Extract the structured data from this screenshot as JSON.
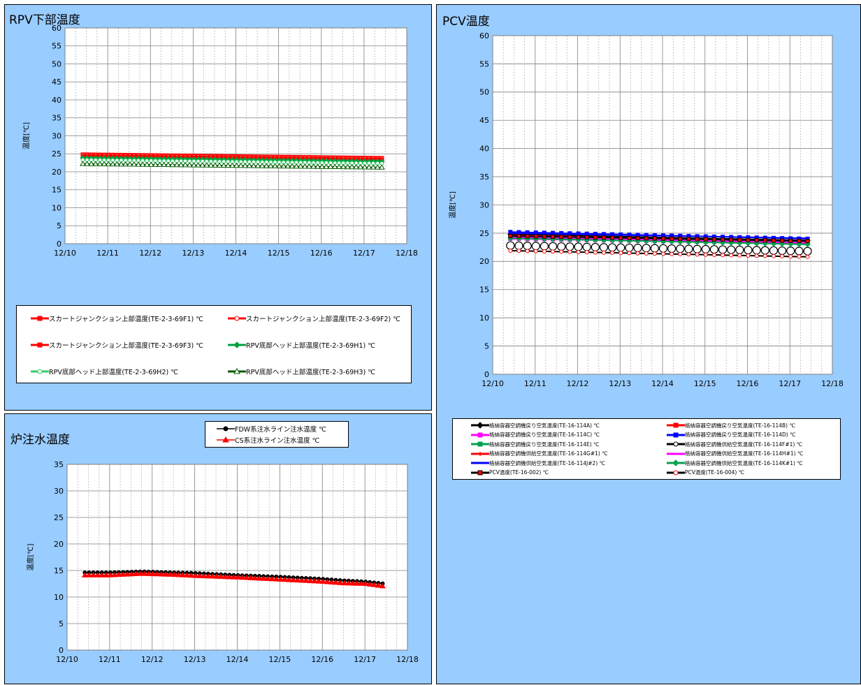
{
  "charts": {
    "rpv": {
      "title": "RPV下部温度",
      "chart_data": {
        "type": "line",
        "title": "RPV下部温度",
        "xlabel": "",
        "ylabel": "温度[℃]",
        "ylim": [
          0,
          60
        ],
        "yticks": [
          0,
          5,
          10,
          15,
          20,
          25,
          30,
          35,
          40,
          45,
          50,
          55,
          60
        ],
        "x_range": [
          "12/10",
          "12/18"
        ],
        "xtick_labels": [
          "12/10",
          "12/11",
          "12/12",
          "12/13",
          "12/14",
          "12/15",
          "12/16",
          "12/17",
          "12/18"
        ],
        "grid": true,
        "x": [
          "12/10 10:00",
          "12/17 11:00"
        ],
        "series": [
          {
            "name": "スカートジャンクション上部温度(TE-2-3-69F1) ℃",
            "values": [
              24.8,
              23.8
            ],
            "color": "#ff0000",
            "marker": "square"
          },
          {
            "name": "スカートジャンクション上部温度(TE-2-3-69F2) ℃",
            "values": [
              24.6,
              23.6
            ],
            "color": "#ff0000",
            "marker": "circle-open"
          },
          {
            "name": "スカートジャンクション上部温度(TE-2-3-69F3) ℃",
            "values": [
              24.3,
              23.3
            ],
            "color": "#ff0000",
            "marker": "square"
          },
          {
            "name": "RPV底部ヘッド上部温度(TE-2-3-69H1) ℃",
            "values": [
              23.8,
              22.8
            ],
            "color": "#00a040",
            "marker": "diamond"
          },
          {
            "name": "RPV底部ヘッド上部温度(TE-2-3-69H2) ℃",
            "values": [
              23.3,
              22.3
            ],
            "color": "#33cc66",
            "marker": "circle-open"
          },
          {
            "name": "RPV底部ヘッド上部温度(TE-2-3-69H3) ℃",
            "values": [
              22.2,
              21.2
            ],
            "color": "#005a00",
            "marker": "triangle-open"
          }
        ]
      }
    },
    "pcv": {
      "title": "PCV温度",
      "chart_data": {
        "type": "line",
        "title": "PCV温度",
        "xlabel": "",
        "ylabel": "温度[℃]",
        "ylim": [
          0,
          60
        ],
        "yticks": [
          0,
          5,
          10,
          15,
          20,
          25,
          30,
          35,
          40,
          45,
          50,
          55,
          60
        ],
        "x_range": [
          "12/10",
          "12/18"
        ],
        "xtick_labels": [
          "12/10",
          "12/11",
          "12/12",
          "12/13",
          "12/14",
          "12/15",
          "12/16",
          "12/17",
          "12/18"
        ],
        "grid": true,
        "x": [
          "12/10 10:00",
          "12/17 11:00"
        ],
        "series": [
          {
            "name": "格納容器空調機戻り空気温度(TE-16-114A) ℃",
            "values": [
              24.8,
              23.7
            ],
            "color": "#000000",
            "marker": "diamond"
          },
          {
            "name": "格納容器空調機戻り空気温度(TE-16-114B) ℃",
            "values": [
              24.6,
              23.5
            ],
            "color": "#ff0000",
            "marker": "square"
          },
          {
            "name": "格納容器空調機戻り空気温度(TE-16-114C) ℃",
            "values": [
              24.0,
              23.2
            ],
            "color": "#ff00ff",
            "marker": "square"
          },
          {
            "name": "格納容器空調機戻り空気温度(TE-16-114D) ℃",
            "values": [
              25.2,
              24.0
            ],
            "color": "#0000ff",
            "marker": "square"
          },
          {
            "name": "格納容器空調機戻り空気温度(TE-16-114E) ℃",
            "values": [
              24.4,
              23.4
            ],
            "color": "#00a050",
            "marker": "square"
          },
          {
            "name": "格納容器空調機供給空気温度(TE-16-114F#1) ℃",
            "values": [
              22.8,
              21.8
            ],
            "color": "#000000",
            "marker": "circle-open-large"
          },
          {
            "name": "格納容器空調機供給空気温度(TE-16-114G#1) ℃",
            "values": [
              24.2,
              23.1
            ],
            "color": "#ff0000",
            "marker": "plus"
          },
          {
            "name": "格納容器空調機供給空気温度(TE-16-114H#1) ℃",
            "values": [
              24.3,
              23.3
            ],
            "color": "#ff00ff",
            "marker": "none"
          },
          {
            "name": "格納容器空調機供給空気温度(TE-16-114J#2) ℃",
            "values": [
              25.0,
              24.1
            ],
            "color": "#0000ff",
            "marker": "none"
          },
          {
            "name": "格納容器空調機供給空気温度(TE-16-114K#1) ℃",
            "values": [
              24.1,
              23.0
            ],
            "color": "#00a050",
            "marker": "diamond"
          },
          {
            "name": "PCV温度(TE-16-002) ℃",
            "values": [
              24.5,
              23.6
            ],
            "color": "#000000",
            "marker": "square-red"
          },
          {
            "name": "PCV温度(TE-16-004) ℃",
            "values": [
              21.9,
              20.8
            ],
            "color": "#000000",
            "marker": "circle-red"
          }
        ]
      }
    },
    "water": {
      "title": "炉注水温度",
      "chart_data": {
        "type": "line",
        "title": "炉注水温度",
        "xlabel": "",
        "ylabel": "温度[℃]",
        "ylim": [
          0,
          35
        ],
        "yticks": [
          0,
          5,
          10,
          15,
          20,
          25,
          30,
          35
        ],
        "x_range": [
          "12/10",
          "12/18"
        ],
        "xtick_labels": [
          "12/10",
          "12/11",
          "12/12",
          "12/13",
          "12/14",
          "12/15",
          "12/16",
          "12/17",
          "12/18"
        ],
        "grid": true,
        "x": [
          "12/10 10:00",
          "12/11 00:00",
          "12/11 18:00",
          "12/12 12:00",
          "12/13 00:00",
          "12/14 00:00",
          "12/15 00:00",
          "12/16 00:00",
          "12/16 12:00",
          "12/17 00:00",
          "12/17 11:00"
        ],
        "series": [
          {
            "name": "FDW系注水ライン注水温度 ℃",
            "values": [
              14.6,
              14.6,
              14.8,
              14.6,
              14.5,
              14.1,
              13.8,
              13.4,
              13.1,
              12.9,
              12.5
            ],
            "color": "#000000",
            "marker": "circle"
          },
          {
            "name": "CS系注水ライン注水温度 ℃",
            "values": [
              14.1,
              14.1,
              14.4,
              14.2,
              14.0,
              13.7,
              13.3,
              12.9,
              12.6,
              12.5,
              12.0
            ],
            "color": "#ff0000",
            "marker": "triangle"
          }
        ]
      }
    }
  }
}
